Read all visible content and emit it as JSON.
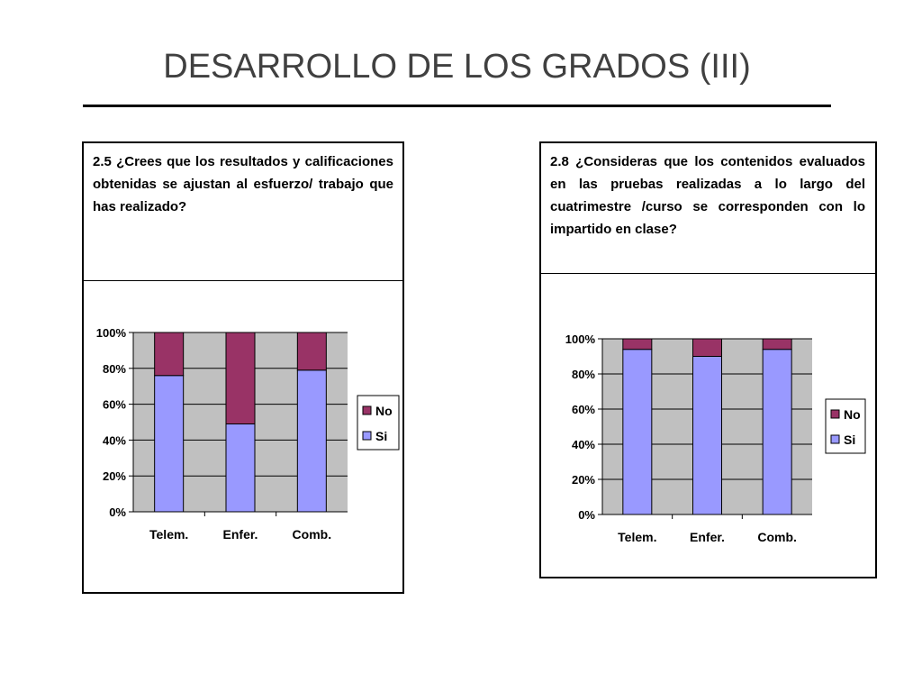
{
  "title": "DESARROLLO DE LOS GRADOS (III)",
  "panels": [
    {
      "question": "2.5 ¿Crees que los resultados y calificaciones obtenidas  se ajustan al esfuerzo/ trabajo que has realizado?"
    },
    {
      "question": "2.8 ¿Consideras que los contenidos evaluados en las pruebas realizadas a lo largo del cuatrimestre /curso se corresponden con lo impartido en clase?"
    }
  ],
  "chart_data": [
    {
      "type": "bar",
      "stacked": true,
      "categories": [
        "Telem.",
        "Enfer.",
        "Comb."
      ],
      "series": [
        {
          "name": "Si",
          "values": [
            76,
            49,
            79
          ],
          "color": "#9999ff"
        },
        {
          "name": "No",
          "values": [
            24,
            51,
            21
          ],
          "color": "#993366"
        }
      ],
      "yticks": [
        "0%",
        "20%",
        "40%",
        "60%",
        "80%",
        "100%"
      ],
      "ylim": [
        0,
        100
      ],
      "grid": true,
      "plot_background": "#c0c0c0",
      "legend": "right"
    },
    {
      "type": "bar",
      "stacked": true,
      "categories": [
        "Telem.",
        "Enfer.",
        "Comb."
      ],
      "series": [
        {
          "name": "Si",
          "values": [
            94,
            90,
            94
          ],
          "color": "#9999ff"
        },
        {
          "name": "No",
          "values": [
            6,
            10,
            6
          ],
          "color": "#993366"
        }
      ],
      "yticks": [
        "0%",
        "20%",
        "40%",
        "60%",
        "80%",
        "100%"
      ],
      "ylim": [
        0,
        100
      ],
      "grid": true,
      "plot_background": "#c0c0c0",
      "legend": "right"
    }
  ]
}
